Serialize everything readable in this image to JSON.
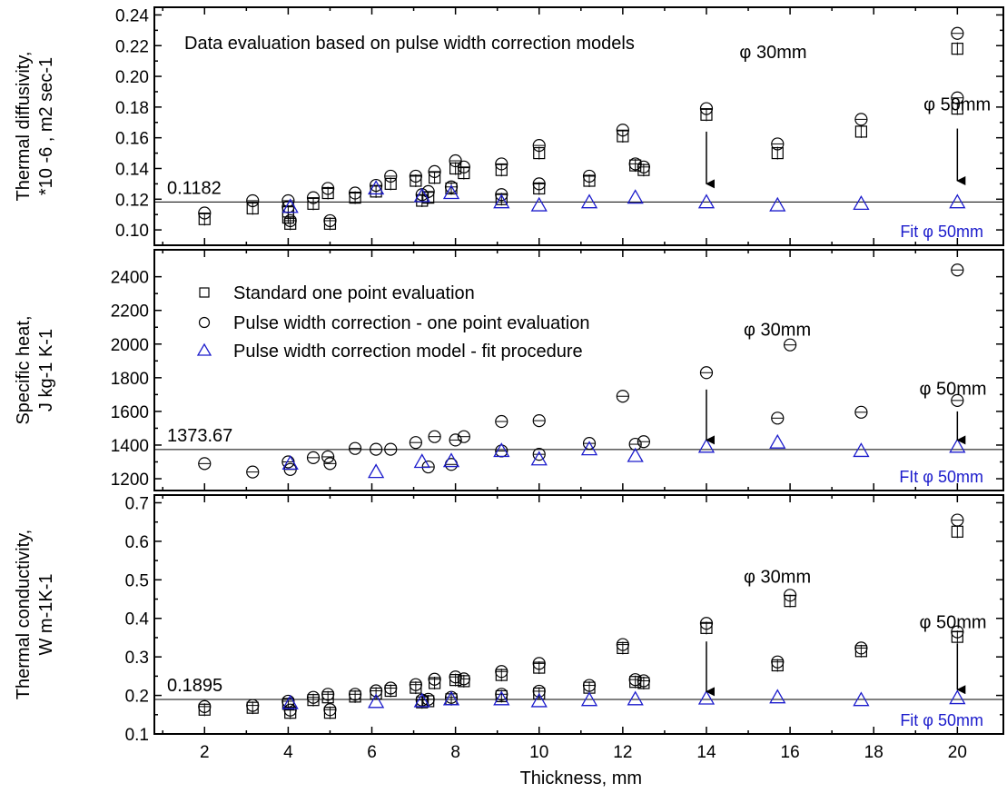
{
  "chart_data": {
    "type": "scatter",
    "xlabel": "Thickness, mm",
    "x_ticks": [
      2,
      4,
      6,
      8,
      10,
      12,
      14,
      16,
      18,
      20
    ],
    "xlim": [
      0.8,
      21.1
    ],
    "colors": {
      "fit": "#1c1ccc",
      "points": "#000000"
    },
    "legend": [
      {
        "marker": "square",
        "label": "Standard one point evaluation"
      },
      {
        "marker": "circle",
        "label": "Pulse width correction - one point evaluation"
      },
      {
        "marker": "triangle",
        "label": "Pulse width correction model - fit procedure"
      }
    ],
    "panels": [
      {
        "id": "diffusivity",
        "ylabel_lines": [
          "Thermal diffusivity,",
          "*10 -6 , m2 sec-1"
        ],
        "ylim": [
          0.09,
          0.245
        ],
        "y_ticks": [
          "0.10",
          "0.12",
          "0.14",
          "0.16",
          "0.18",
          "0.20",
          "0.22",
          "0.24"
        ],
        "ref_line": 0.1182,
        "ref_label": "0.1182",
        "header": "Data evaluation based on pulse width correction models",
        "annotations": [
          {
            "text": "φ 30mm",
            "x": 16.4,
            "y": 0.212
          },
          {
            "text": "φ 50mm",
            "x": 20.8,
            "y": 0.178
          }
        ],
        "fit_label": "Fit φ 50mm",
        "arrows": [
          {
            "x": 14,
            "from": 0.164,
            "to": 0.13
          },
          {
            "x": 20,
            "from": 0.166,
            "to": 0.132
          }
        ],
        "series": [
          {
            "name": "Standard one point evaluation",
            "marker": "square",
            "x": [
              2,
              3.15,
              4,
              4,
              4.05,
              4.6,
              4.95,
              5,
              5.6,
              6.1,
              6.45,
              7.05,
              7.2,
              7.35,
              7.5,
              7.9,
              8,
              8.2,
              9.1,
              9.1,
              10,
              10,
              11.2,
              12,
              12.3,
              12.5,
              14,
              15.7,
              17.7,
              20,
              20
            ],
            "y": [
              0.107,
              0.114,
              0.112,
              0.108,
              0.104,
              0.117,
              0.124,
              0.104,
              0.121,
              0.125,
              0.13,
              0.132,
              0.119,
              0.121,
              0.134,
              0.127,
              0.14,
              0.137,
              0.139,
              0.12,
              0.15,
              0.127,
              0.132,
              0.161,
              0.142,
              0.139,
              0.175,
              0.15,
              0.164,
              0.218,
              0.179
            ]
          },
          {
            "name": "Pulse width correction - one point evaluation",
            "marker": "circle",
            "x": [
              2,
              3.15,
              4,
              4,
              4.05,
              4.6,
              4.95,
              5,
              5.6,
              6.1,
              6.45,
              7.05,
              7.2,
              7.35,
              7.5,
              7.9,
              8,
              8.2,
              9.1,
              9.1,
              10,
              10,
              11.2,
              12,
              12.3,
              12.5,
              14,
              15.7,
              17.7,
              20,
              20
            ],
            "y": [
              0.111,
              0.119,
              0.119,
              0.115,
              0.106,
              0.121,
              0.127,
              0.106,
              0.124,
              0.129,
              0.135,
              0.135,
              0.123,
              0.125,
              0.138,
              0.128,
              0.145,
              0.141,
              0.143,
              0.123,
              0.155,
              0.13,
              0.135,
              0.165,
              0.143,
              0.141,
              0.179,
              0.156,
              0.172,
              0.228,
              0.186
            ]
          },
          {
            "name": "Pulse width correction model - fit procedure",
            "marker": "triangle",
            "x": [
              4.05,
              6.1,
              7.2,
              7.9,
              9.1,
              10,
              11.2,
              12.3,
              14,
              15.7,
              17.7,
              20
            ],
            "y": [
              0.115,
              0.127,
              0.122,
              0.124,
              0.118,
              0.116,
              0.118,
              0.121,
              0.118,
              0.116,
              0.117,
              0.118
            ]
          }
        ]
      },
      {
        "id": "specific-heat",
        "ylabel_lines": [
          "Specific heat,",
          "J kg-1 K-1"
        ],
        "ylim": [
          1130,
          2560
        ],
        "y_ticks": [
          "1200",
          "1400",
          "1600",
          "1800",
          "2000",
          "2200",
          "2400"
        ],
        "ref_line": 1373.67,
        "ref_label": "1373.67",
        "annotations": [
          {
            "text": "φ 30mm",
            "x": 16.5,
            "y": 2050
          },
          {
            "text": "φ 50mm",
            "x": 20.7,
            "y": 1700
          }
        ],
        "fit_label": "FIt φ 50mm",
        "arrows": [
          {
            "x": 14,
            "from": 1730,
            "to": 1430
          },
          {
            "x": 20,
            "from": 1600,
            "to": 1430
          }
        ],
        "series": [
          {
            "name": "Pulse width correction - one point evaluation",
            "marker": "circle",
            "x": [
              2,
              3.15,
              4,
              4.05,
              4.6,
              4.95,
              5,
              5.6,
              6.1,
              6.45,
              7.05,
              7.35,
              7.5,
              7.9,
              8,
              8.2,
              9.1,
              9.1,
              10,
              10,
              11.2,
              12,
              12.3,
              12.5,
              14,
              15.7,
              16,
              17.7,
              20,
              20
            ],
            "y": [
              1290,
              1240,
              1300,
              1255,
              1325,
              1330,
              1290,
              1380,
              1375,
              1375,
              1415,
              1270,
              1450,
              1285,
              1430,
              1450,
              1540,
              1365,
              1545,
              1345,
              1410,
              1690,
              1405,
              1420,
              1830,
              1560,
              1995,
              1595,
              2440,
              1665
            ]
          },
          {
            "name": "Pulse width correction model - fit procedure",
            "marker": "triangle",
            "x": [
              4.05,
              6.1,
              7.2,
              7.9,
              9.1,
              10,
              11.2,
              12.3,
              14,
              15.7,
              17.7,
              20
            ],
            "y": [
              1290,
              1240,
              1300,
              1305,
              1365,
              1315,
              1375,
              1335,
              1390,
              1415,
              1365,
              1390
            ]
          }
        ]
      },
      {
        "id": "conductivity",
        "ylabel_lines": [
          "Thermal conductivity,",
          "W m-1K-1"
        ],
        "ylim": [
          0.1,
          0.72
        ],
        "y_ticks": [
          "0.1",
          "0.2",
          "0.3",
          "0.4",
          "0.5",
          "0.6",
          "0.7"
        ],
        "ref_line": 0.1895,
        "ref_label": "0.1895",
        "annotations": [
          {
            "text": "φ 30mm",
            "x": 16.5,
            "y": 0.493
          },
          {
            "text": "φ 50mm",
            "x": 20.7,
            "y": 0.375
          }
        ],
        "fit_label": "Fit φ 50mm",
        "arrows": [
          {
            "x": 14,
            "from": 0.34,
            "to": 0.21
          },
          {
            "x": 20,
            "from": 0.335,
            "to": 0.215
          }
        ],
        "series": [
          {
            "name": "Standard one point evaluation",
            "marker": "square",
            "x": [
              2,
              3.15,
              4,
              4.05,
              4.6,
              4.95,
              5,
              5.6,
              6.1,
              6.45,
              7.05,
              7.2,
              7.35,
              7.5,
              7.9,
              8,
              8.2,
              9.1,
              9.1,
              10,
              10,
              11.2,
              12,
              12.3,
              12.5,
              14,
              15.7,
              16,
              17.7,
              20,
              20
            ],
            "y": [
              0.163,
              0.168,
              0.178,
              0.155,
              0.188,
              0.195,
              0.155,
              0.197,
              0.205,
              0.212,
              0.22,
              0.182,
              0.185,
              0.232,
              0.19,
              0.24,
              0.237,
              0.253,
              0.198,
              0.272,
              0.205,
              0.22,
              0.323,
              0.235,
              0.232,
              0.375,
              0.278,
              0.445,
              0.315,
              0.625,
              0.352
            ]
          },
          {
            "name": "Pulse width correction - one point evaluation",
            "marker": "circle",
            "x": [
              2,
              3.15,
              4,
              4.05,
              4.6,
              4.95,
              5,
              5.6,
              6.1,
              6.45,
              7.05,
              7.2,
              7.35,
              7.5,
              7.9,
              8,
              8.2,
              9.1,
              9.1,
              10,
              10,
              11.2,
              12,
              12.3,
              12.5,
              14,
              15.7,
              16,
              17.7,
              20,
              20
            ],
            "y": [
              0.171,
              0.174,
              0.185,
              0.162,
              0.195,
              0.203,
              0.163,
              0.203,
              0.212,
              0.219,
              0.228,
              0.188,
              0.19,
              0.242,
              0.195,
              0.248,
              0.243,
              0.262,
              0.203,
              0.283,
              0.211,
              0.226,
              0.332,
              0.241,
              0.238,
              0.387,
              0.287,
              0.46,
              0.323,
              0.655,
              0.365
            ]
          },
          {
            "name": "Pulse width correction model - fit procedure",
            "marker": "triangle",
            "x": [
              4.05,
              6.1,
              7.2,
              7.9,
              9.1,
              10,
              11.2,
              12.3,
              14,
              15.7,
              17.7,
              20
            ],
            "y": [
              0.18,
              0.183,
              0.185,
              0.19,
              0.19,
              0.185,
              0.188,
              0.19,
              0.192,
              0.195,
              0.188,
              0.193
            ]
          }
        ]
      }
    ]
  }
}
